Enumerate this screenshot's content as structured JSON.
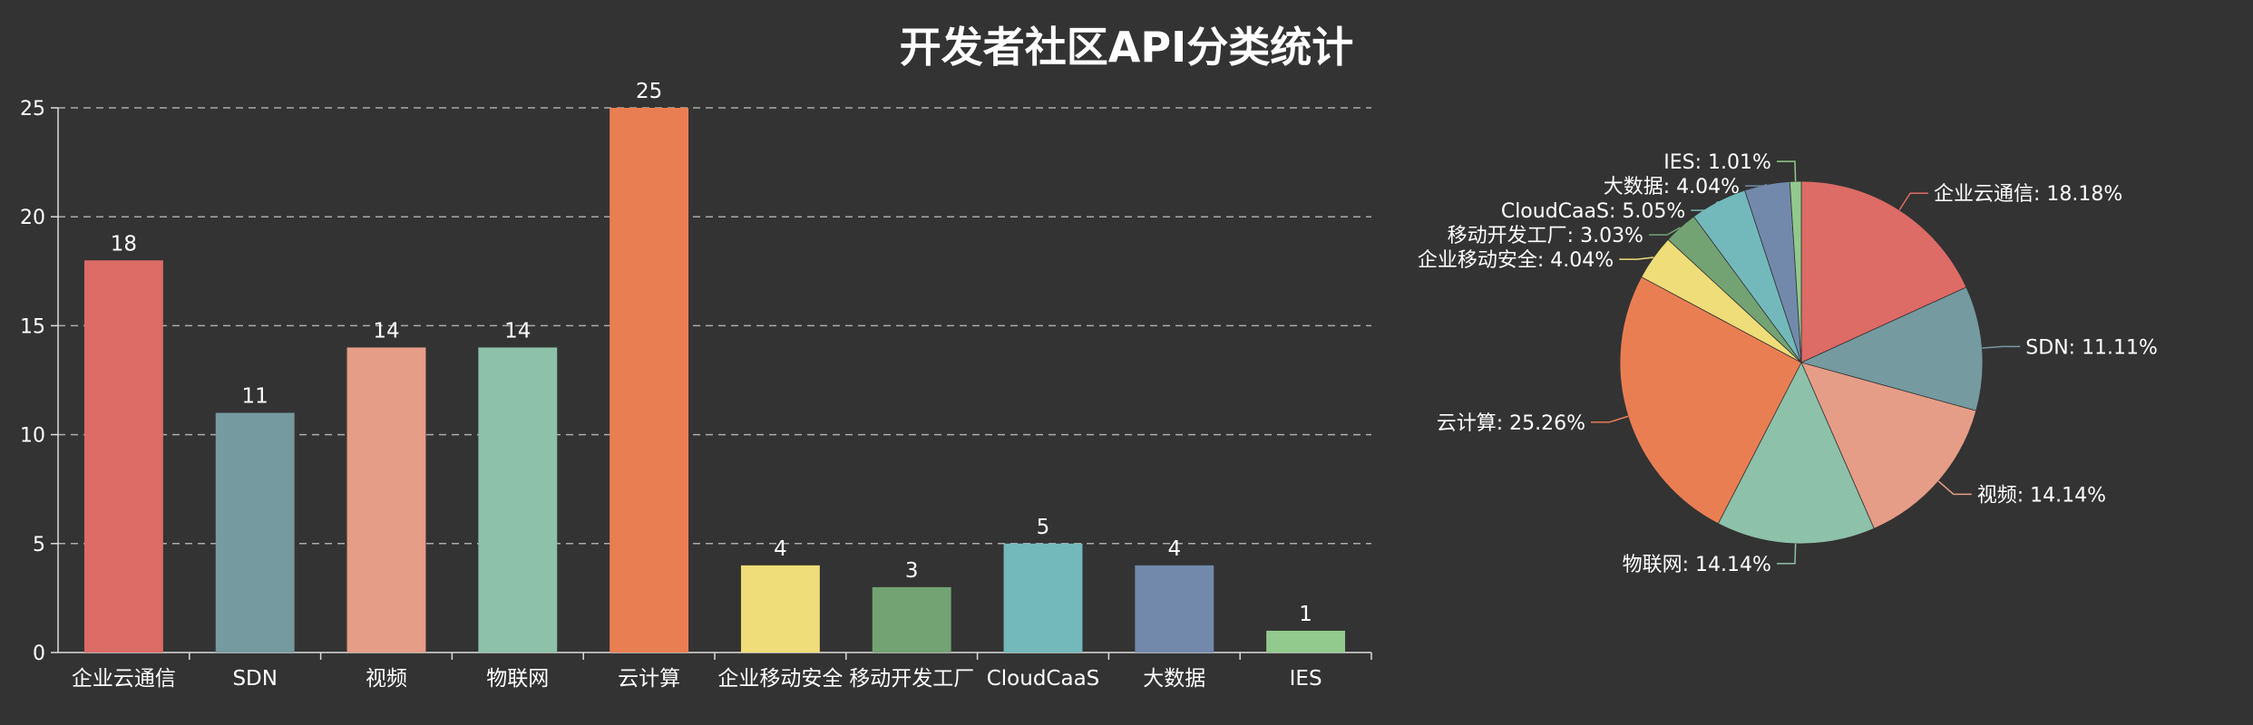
{
  "chart_data": [
    {
      "type": "bar",
      "title": "开发者社区API分类统计",
      "categories": [
        "企业云通信",
        "SDN",
        "视频",
        "物联网",
        "云计算",
        "企业移动安全",
        "移动开发工厂",
        "CloudCaaS",
        "大数据",
        "IES"
      ],
      "values": [
        18,
        11,
        14,
        14,
        25,
        4,
        3,
        5,
        4,
        1
      ],
      "colors": [
        "#dd6b66",
        "#759aa0",
        "#e69d87",
        "#8dc1a9",
        "#ea7e53",
        "#eedd78",
        "#73a373",
        "#73b9bc",
        "#7289ab",
        "#91ca8c"
      ],
      "ylim": [
        0,
        25
      ],
      "yticks": [
        0,
        5,
        10,
        15,
        20,
        25
      ],
      "grid": true,
      "data_labels": true
    },
    {
      "type": "pie",
      "labels": [
        "企业云通信: 18.18%",
        "SDN: 11.11%",
        "视频: 14.14%",
        "物联网: 14.14%",
        "云计算: 25.26%",
        "企业移动安全: 4.04%",
        "移动开发工厂: 3.03%",
        "CloudCaaS: 5.05%",
        "大数据: 4.04%",
        "IES: 1.01%"
      ],
      "values": [
        18,
        11,
        14,
        14,
        25,
        4,
        3,
        5,
        4,
        1
      ],
      "colors": [
        "#dd6b66",
        "#759aa0",
        "#e69d87",
        "#8dc1a9",
        "#ea7e53",
        "#eedd78",
        "#73a373",
        "#73b9bc",
        "#7289ab",
        "#91ca8c"
      ]
    }
  ]
}
